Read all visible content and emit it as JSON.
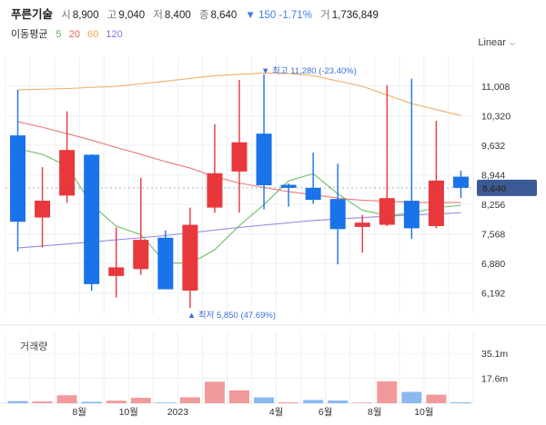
{
  "header": {
    "name": "푸른기술",
    "open_label": "시",
    "open": "8,900",
    "high_label": "고",
    "high": "9,040",
    "low_label": "저",
    "low": "8,400",
    "close_label": "종",
    "close": "8,640",
    "change": "▼ 150 -1.71%",
    "volume_label": "거",
    "volume": "1,736,849"
  },
  "ma": {
    "label": "이동평균",
    "periods": [
      "5",
      "20",
      "60",
      "120"
    ],
    "colors": [
      "#52b352",
      "#e8635f",
      "#f0a050",
      "#9070e0"
    ]
  },
  "scale_button": "Linear",
  "volume_title": "거래량",
  "colors": {
    "up": "#e8383c",
    "down": "#1a73e8",
    "vol_up": "#f09a9c",
    "vol_down": "#8ab8f0",
    "current_tag": "#3d5a98"
  },
  "chart_data": {
    "type": "candlestick",
    "ylim": [
      5700,
      11700
    ],
    "yticks": [
      11008,
      10320,
      9632,
      8944,
      8256,
      7568,
      6880,
      6192
    ],
    "ytick_labels": [
      "11,008",
      "10,320",
      "9,632",
      "8,944",
      "8,256",
      "7,568",
      "6,880",
      "6,192"
    ],
    "xticks": [
      {
        "label": "8월",
        "after": 2
      },
      {
        "label": "10월",
        "after": 4
      },
      {
        "label": "2023",
        "after": 6
      },
      {
        "label": "4월",
        "after": 10
      },
      {
        "label": "6월",
        "after": 12
      },
      {
        "label": "8월",
        "after": 14
      },
      {
        "label": "10월",
        "after": 16
      }
    ],
    "candles": [
      {
        "o": 9860,
        "h": 10920,
        "l": 7160,
        "c": 7850
      },
      {
        "o": 7950,
        "h": 9120,
        "l": 7250,
        "c": 8340
      },
      {
        "o": 8460,
        "h": 10420,
        "l": 8290,
        "c": 9520
      },
      {
        "o": 9410,
        "h": 9420,
        "l": 6250,
        "c": 6400
      },
      {
        "o": 6590,
        "h": 7720,
        "l": 6090,
        "c": 6790
      },
      {
        "o": 6750,
        "h": 8870,
        "l": 6620,
        "c": 7430
      },
      {
        "o": 7480,
        "h": 7650,
        "l": 6280,
        "c": 6280
      },
      {
        "o": 6250,
        "h": 8180,
        "l": 5850,
        "c": 7780
      },
      {
        "o": 8180,
        "h": 10120,
        "l": 8060,
        "c": 8980
      },
      {
        "o": 9020,
        "h": 11150,
        "l": 8060,
        "c": 9700
      },
      {
        "o": 9900,
        "h": 11280,
        "l": 8140,
        "c": 8700
      },
      {
        "o": 8710,
        "h": 8740,
        "l": 8200,
        "c": 8640
      },
      {
        "o": 8640,
        "h": 9460,
        "l": 8270,
        "c": 8360
      },
      {
        "o": 8380,
        "h": 9200,
        "l": 6860,
        "c": 7680
      },
      {
        "o": 7730,
        "h": 8010,
        "l": 7130,
        "c": 7830
      },
      {
        "o": 7780,
        "h": 11030,
        "l": 7750,
        "c": 8400
      },
      {
        "o": 8340,
        "h": 11180,
        "l": 7450,
        "c": 7700
      },
      {
        "o": 7750,
        "h": 10200,
        "l": 7700,
        "c": 8810
      },
      {
        "o": 8900,
        "h": 9040,
        "l": 8400,
        "c": 8640
      }
    ],
    "ma": {
      "5": [
        [
          0,
          9550
        ],
        [
          1,
          9420
        ],
        [
          2,
          9150
        ],
        [
          3,
          8250
        ],
        [
          4,
          7750
        ],
        [
          5,
          7550
        ],
        [
          6,
          6900
        ],
        [
          7,
          6880
        ],
        [
          8,
          7200
        ],
        [
          9,
          7760
        ],
        [
          10,
          8250
        ],
        [
          11,
          8800
        ],
        [
          12,
          8970
        ],
        [
          13,
          8500
        ],
        [
          14,
          8120
        ],
        [
          15,
          8000
        ],
        [
          16,
          8050
        ],
        [
          17,
          8180
        ],
        [
          18,
          8230
        ]
      ],
      "20": [
        [
          0,
          10180
        ],
        [
          1,
          10050
        ],
        [
          2,
          9900
        ],
        [
          3,
          9750
        ],
        [
          4,
          9580
        ],
        [
          5,
          9420
        ],
        [
          6,
          9250
        ],
        [
          7,
          9100
        ],
        [
          8,
          8900
        ],
        [
          9,
          8750
        ],
        [
          10,
          8650
        ],
        [
          11,
          8550
        ],
        [
          12,
          8480
        ],
        [
          13,
          8400
        ],
        [
          14,
          8350
        ],
        [
          15,
          8330
        ],
        [
          16,
          8300
        ],
        [
          17,
          8300
        ],
        [
          18,
          8300
        ]
      ],
      "60": [
        [
          0,
          10920
        ],
        [
          2,
          10950
        ],
        [
          4,
          11000
        ],
        [
          6,
          11120
        ],
        [
          8,
          11250
        ],
        [
          10,
          11310
        ],
        [
          11,
          11300
        ],
        [
          12,
          11250
        ],
        [
          14,
          11000
        ],
        [
          16,
          10600
        ],
        [
          18,
          10320
        ]
      ],
      "120": [
        [
          0,
          7240
        ],
        [
          3,
          7380
        ],
        [
          6,
          7530
        ],
        [
          9,
          7720
        ],
        [
          12,
          7880
        ],
        [
          15,
          7980
        ],
        [
          18,
          8060
        ]
      ]
    },
    "annotations": [
      {
        "label": "▼ 최고 11,280 (-23.40%)",
        "candle": 10,
        "value": 11280
      },
      {
        "label": "▲ 최저 5,850 (47.69%)",
        "candle": 7,
        "value": 5850
      }
    ],
    "current_price": {
      "value": 8640,
      "label": "8,640"
    },
    "volume": {
      "ylim": [
        0,
        50
      ],
      "ticks": [
        {
          "value": 35.1,
          "label": "35.1m"
        },
        {
          "value": 17.6,
          "label": "17.6m"
        }
      ],
      "bars": [
        {
          "v": 1.5,
          "dir": "down"
        },
        {
          "v": 1.2,
          "dir": "up"
        },
        {
          "v": 5.6,
          "dir": "up"
        },
        {
          "v": 1.0,
          "dir": "down"
        },
        {
          "v": 1.8,
          "dir": "up"
        },
        {
          "v": 3.8,
          "dir": "up"
        },
        {
          "v": 0.5,
          "dir": "down"
        },
        {
          "v": 4.2,
          "dir": "up"
        },
        {
          "v": 15.2,
          "dir": "up"
        },
        {
          "v": 9.1,
          "dir": "up"
        },
        {
          "v": 4.1,
          "dir": "down"
        },
        {
          "v": 0.6,
          "dir": "up"
        },
        {
          "v": 2.3,
          "dir": "down"
        },
        {
          "v": 1.9,
          "dir": "down"
        },
        {
          "v": 0.4,
          "dir": "up"
        },
        {
          "v": 15.5,
          "dir": "up"
        },
        {
          "v": 8.0,
          "dir": "down"
        },
        {
          "v": 6.0,
          "dir": "up"
        },
        {
          "v": 0.6,
          "dir": "down"
        }
      ]
    }
  }
}
